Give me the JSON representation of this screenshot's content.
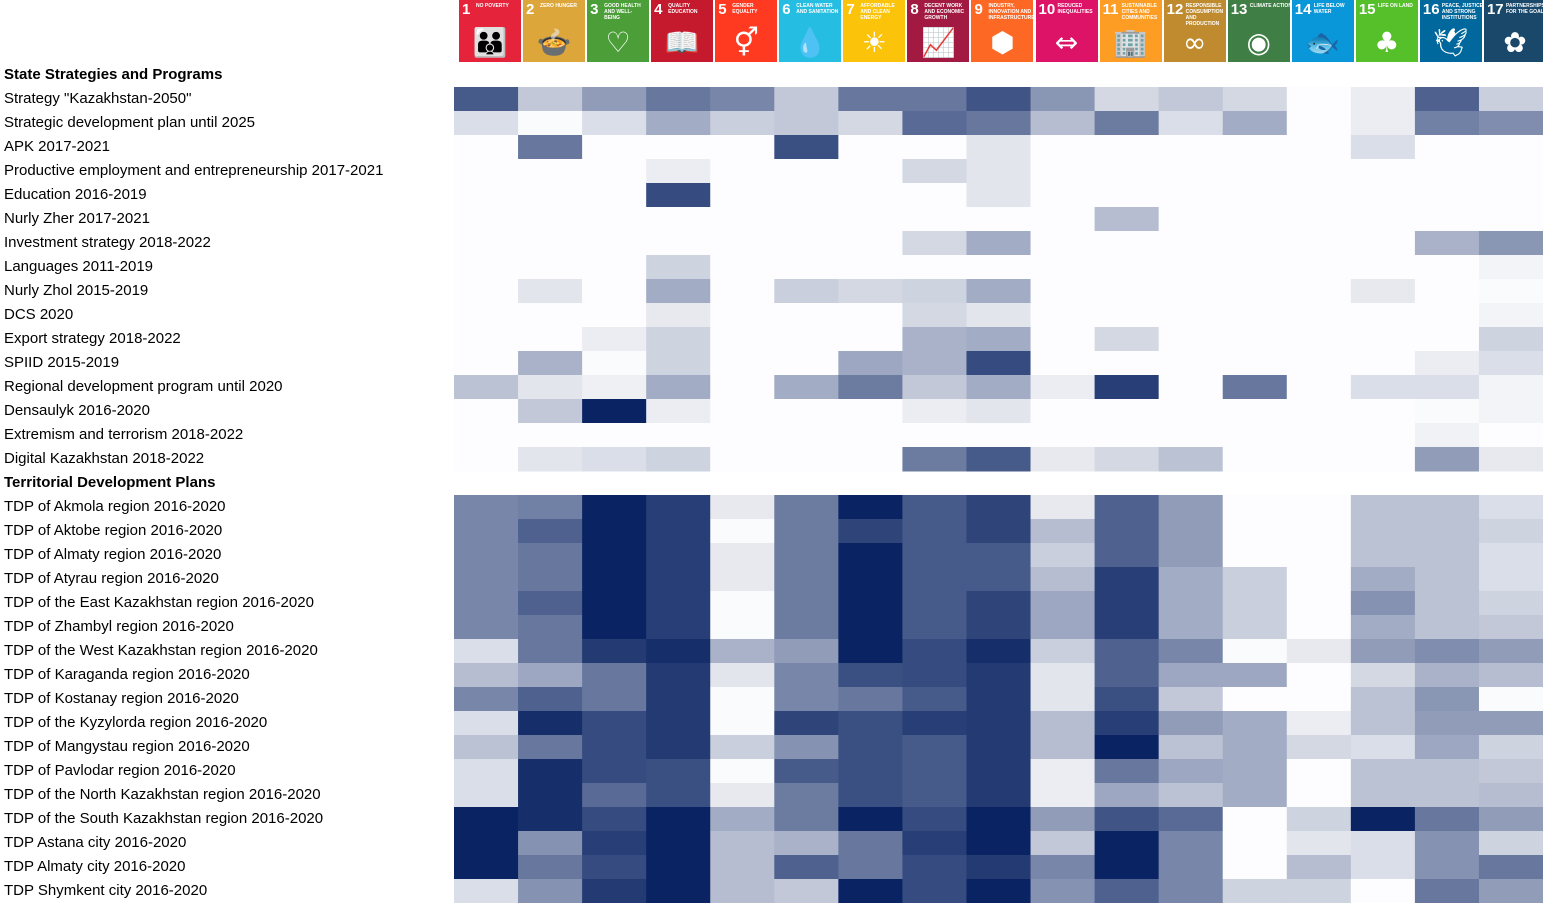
{
  "sdgs": [
    {
      "num": "1",
      "title": "No poverty",
      "color": "#e5243b",
      "icon": "people-family-icon"
    },
    {
      "num": "2",
      "title": "Zero hunger",
      "color": "#dda63a",
      "icon": "food-bowl-icon"
    },
    {
      "num": "3",
      "title": "Good health and well-being",
      "color": "#4c9f38",
      "icon": "heartbeat-icon"
    },
    {
      "num": "4",
      "title": "Quality education",
      "color": "#c5192d",
      "icon": "open-book-icon"
    },
    {
      "num": "5",
      "title": "Gender equality",
      "color": "#ff3a21",
      "icon": "gender-equality-icon"
    },
    {
      "num": "6",
      "title": "Clean water and sanitation",
      "color": "#26bde2",
      "icon": "water-drop-icon"
    },
    {
      "num": "7",
      "title": "Affordable and clean energy",
      "color": "#fcc30b",
      "icon": "sun-icon"
    },
    {
      "num": "8",
      "title": "Decent work and economic growth",
      "color": "#a21942",
      "icon": "growth-chart-icon"
    },
    {
      "num": "9",
      "title": "Industry, innovation and infrastructure",
      "color": "#fd6925",
      "icon": "cubes-icon"
    },
    {
      "num": "10",
      "title": "Reduced inequalities",
      "color": "#dd1367",
      "icon": "equality-arrows-icon"
    },
    {
      "num": "11",
      "title": "Sustainable cities and communities",
      "color": "#fd9d24",
      "icon": "city-buildings-icon"
    },
    {
      "num": "12",
      "title": "Responsible consumption and production",
      "color": "#bf8b2e",
      "icon": "infinity-icon"
    },
    {
      "num": "13",
      "title": "Climate action",
      "color": "#3f7e44",
      "icon": "eye-globe-icon"
    },
    {
      "num": "14",
      "title": "Life below water",
      "color": "#0a97d9",
      "icon": "fish-icon"
    },
    {
      "num": "15",
      "title": "Life on land",
      "color": "#56c02b",
      "icon": "tree-icon"
    },
    {
      "num": "16",
      "title": "Peace, justice and strong institutions",
      "color": "#00689d",
      "icon": "dove-icon"
    },
    {
      "num": "17",
      "title": "Partnerships for the goals",
      "color": "#19486a",
      "icon": "rings-icon"
    }
  ],
  "sections": {
    "state": "State Strategies and Programs",
    "territorial": "Territorial Development Plans"
  },
  "chart_data": {
    "type": "heatmap",
    "columns": [
      "1",
      "2",
      "3",
      "4",
      "5",
      "6",
      "7",
      "8",
      "9",
      "10",
      "11",
      "12",
      "13",
      "14",
      "15",
      "16",
      "17"
    ],
    "value_range": [
      0,
      1
    ],
    "color_low": "#ffffff",
    "color_high": "#0a2463",
    "rows": [
      {
        "label": "Strategy \"Kazakhstan-2050\"",
        "values": [
          0.75,
          0.25,
          0.45,
          0.62,
          0.55,
          0.25,
          0.62,
          0.62,
          0.78,
          0.48,
          0.18,
          0.25,
          0.18,
          0,
          0.08,
          0.72,
          0.22
        ]
      },
      {
        "label": "Strategic development plan until 2025",
        "values": [
          0.15,
          0.02,
          0.15,
          0.38,
          0.22,
          0.25,
          0.18,
          0.68,
          0.62,
          0.3,
          0.6,
          0.15,
          0.38,
          0,
          0.08,
          0.58,
          0.52
        ]
      },
      {
        "label": "APK 2017-2021",
        "values": [
          0,
          0.62,
          0,
          0,
          0,
          0.8,
          0,
          0,
          0.12,
          0,
          0,
          0,
          0,
          0,
          0.15,
          0,
          0
        ]
      },
      {
        "label": "Productive employment and entrepreneurship 2017-2021",
        "values": [
          0,
          0,
          0,
          0.08,
          0,
          0,
          0,
          0.18,
          0.12,
          0,
          0,
          0,
          0,
          0,
          0,
          0,
          0
        ]
      },
      {
        "label": "Education 2016-2019",
        "values": [
          0,
          0,
          0,
          0.82,
          0,
          0,
          0,
          0,
          0.12,
          0,
          0,
          0,
          0,
          0,
          0,
          0,
          0
        ]
      },
      {
        "label": "Nurly Zher 2017-2021",
        "values": [
          0,
          0,
          0,
          0,
          0,
          0,
          0,
          0,
          0,
          0,
          0.3,
          0,
          0,
          0,
          0,
          0,
          0
        ]
      },
      {
        "label": "Investment strategy 2018-2022",
        "values": [
          0,
          0,
          0,
          0,
          0,
          0,
          0,
          0.18,
          0.38,
          0,
          0,
          0,
          0,
          0,
          0,
          0.35,
          0.48
        ]
      },
      {
        "label": "Languages 2011-2019",
        "values": [
          0,
          0,
          0,
          0.2,
          0,
          0,
          0,
          0,
          0,
          0,
          0,
          0,
          0,
          0,
          0,
          0,
          0.05
        ]
      },
      {
        "label": "Nurly Zhol 2015-2019",
        "values": [
          0,
          0.12,
          0,
          0.38,
          0,
          0.22,
          0.18,
          0.2,
          0.38,
          0,
          0,
          0,
          0,
          0,
          0.1,
          0,
          0.02
        ]
      },
      {
        "label": "DCS 2020",
        "values": [
          0,
          0,
          0,
          0.1,
          0,
          0,
          0,
          0.18,
          0.12,
          0,
          0,
          0,
          0,
          0,
          0,
          0,
          0.05
        ]
      },
      {
        "label": "Export strategy 2018-2022",
        "values": [
          0,
          0,
          0.08,
          0.2,
          0,
          0,
          0,
          0.35,
          0.38,
          0,
          0.18,
          0,
          0,
          0,
          0,
          0,
          0.2
        ]
      },
      {
        "label": "SPIID 2015-2019",
        "values": [
          0,
          0.35,
          0.02,
          0.2,
          0,
          0,
          0.4,
          0.35,
          0.82,
          0,
          0,
          0,
          0,
          0,
          0,
          0.08,
          0.15
        ]
      },
      {
        "label": "Regional development program until 2020",
        "values": [
          0.28,
          0.12,
          0.07,
          0.38,
          0,
          0.38,
          0.6,
          0.25,
          0.38,
          0.08,
          0.88,
          0,
          0.62,
          0,
          0.15,
          0.15,
          0.05
        ]
      },
      {
        "label": "Densaulyk 2016-2020",
        "values": [
          0,
          0.25,
          1,
          0.08,
          0,
          0,
          0,
          0.08,
          0.12,
          0,
          0,
          0,
          0,
          0,
          0,
          0.02,
          0.05
        ]
      },
      {
        "label": "Extremism and terrorism 2018-2022",
        "values": [
          0,
          0,
          0,
          0,
          0,
          0,
          0,
          0,
          0,
          0,
          0,
          0,
          0,
          0,
          0,
          0.06,
          0
        ]
      },
      {
        "label": "Digital Kazakhstan 2018-2022",
        "values": [
          0,
          0.12,
          0.15,
          0.2,
          0,
          0,
          0,
          0.6,
          0.75,
          0.1,
          0.18,
          0.28,
          0,
          0,
          0,
          0.45,
          0.1
        ]
      },
      {
        "label": "TDP of Akmola region 2016-2020",
        "values": [
          0.55,
          0.58,
          1,
          0.88,
          0.1,
          0.6,
          1,
          0.75,
          0.85,
          0.1,
          0.72,
          0.45,
          0,
          0,
          0.28,
          0.28,
          0.15
        ]
      },
      {
        "label": "TDP of Aktobe region 2016-2020",
        "values": [
          0.55,
          0.72,
          1,
          0.88,
          0.02,
          0.6,
          0.85,
          0.75,
          0.85,
          0.3,
          0.72,
          0.45,
          0,
          0,
          0.28,
          0.28,
          0.2
        ]
      },
      {
        "label": "TDP of Almaty region 2016-2020",
        "values": [
          0.55,
          0.62,
          1,
          0.88,
          0.1,
          0.6,
          1,
          0.75,
          0.75,
          0.22,
          0.72,
          0.45,
          0,
          0,
          0.28,
          0.28,
          0.15
        ]
      },
      {
        "label": "TDP of Atyrau region 2016-2020",
        "values": [
          0.55,
          0.62,
          1,
          0.88,
          0.1,
          0.6,
          1,
          0.75,
          0.75,
          0.3,
          0.88,
          0.38,
          0.22,
          0,
          0.38,
          0.28,
          0.15
        ]
      },
      {
        "label": "TDP of the East Kazakhstan region 2016-2020",
        "values": [
          0.55,
          0.72,
          1,
          0.88,
          0.02,
          0.6,
          1,
          0.75,
          0.85,
          0.4,
          0.88,
          0.38,
          0.22,
          0,
          0.5,
          0.28,
          0.2
        ]
      },
      {
        "label": "TDP of Zhambyl region 2016-2020",
        "values": [
          0.55,
          0.62,
          1,
          0.88,
          0.02,
          0.6,
          1,
          0.75,
          0.85,
          0.4,
          0.88,
          0.38,
          0.22,
          0,
          0.38,
          0.28,
          0.25
        ]
      },
      {
        "label": "TDP of the West Kazakhstan region 2016-2020",
        "values": [
          0.15,
          0.62,
          0.9,
          0.95,
          0.35,
          0.45,
          1,
          0.82,
          0.95,
          0.22,
          0.72,
          0.55,
          0.02,
          0.1,
          0.45,
          0.52,
          0.45
        ]
      },
      {
        "label": "TDP of Karaganda region 2016-2020",
        "values": [
          0.3,
          0.4,
          0.62,
          0.9,
          0.12,
          0.55,
          0.8,
          0.82,
          0.9,
          0.12,
          0.72,
          0.4,
          0.4,
          0,
          0.18,
          0.35,
          0.3
        ]
      },
      {
        "label": "TDP of Kostanay region 2016-2020",
        "values": [
          0.55,
          0.72,
          0.62,
          0.9,
          0.02,
          0.55,
          0.62,
          0.75,
          0.9,
          0.12,
          0.8,
          0.25,
          0,
          0,
          0.28,
          0.48,
          0.02
        ]
      },
      {
        "label": "TDP of the Kyzylorda region 2016-2020",
        "values": [
          0.15,
          0.95,
          0.82,
          0.9,
          0.02,
          0.85,
          0.8,
          0.88,
          0.9,
          0.3,
          0.88,
          0.45,
          0.38,
          0.08,
          0.28,
          0.45,
          0.45
        ]
      },
      {
        "label": "TDP of Mangystau region 2016-2020",
        "values": [
          0.28,
          0.62,
          0.82,
          0.9,
          0.22,
          0.5,
          0.8,
          0.75,
          0.9,
          0.3,
          1,
          0.28,
          0.38,
          0.18,
          0.15,
          0.4,
          0.2
        ]
      },
      {
        "label": "TDP of Pavlodar region 2016-2020",
        "values": [
          0.15,
          0.95,
          0.82,
          0.8,
          0.02,
          0.75,
          0.8,
          0.75,
          0.9,
          0.08,
          0.62,
          0.4,
          0.38,
          0,
          0.28,
          0.28,
          0.25
        ]
      },
      {
        "label": "TDP of the North Kazakhstan region 2016-2020",
        "values": [
          0.15,
          0.95,
          0.68,
          0.8,
          0.1,
          0.6,
          0.8,
          0.75,
          0.9,
          0.08,
          0.4,
          0.28,
          0.38,
          0,
          0.28,
          0.28,
          0.3
        ]
      },
      {
        "label": "TDP of the South Kazakhstan region 2016-2020",
        "values": [
          1,
          0.95,
          0.82,
          1,
          0.38,
          0.6,
          1,
          0.82,
          1,
          0.45,
          0.78,
          0.68,
          0,
          0.2,
          1,
          0.62,
          0.45
        ]
      },
      {
        "label": "TDP Astana city 2016-2020",
        "values": [
          1,
          0.5,
          0.88,
          1,
          0.3,
          0.35,
          0.62,
          0.88,
          1,
          0.25,
          1,
          0.55,
          0,
          0.12,
          0.15,
          0.5,
          0.2
        ]
      },
      {
        "label": "TDP Almaty city 2016-2020",
        "values": [
          1,
          0.62,
          0.82,
          1,
          0.3,
          0.72,
          0.62,
          0.82,
          0.9,
          0.55,
          1,
          0.55,
          0,
          0.3,
          0.15,
          0.5,
          0.62
        ]
      },
      {
        "label": "TDP Shymkent city 2016-2020",
        "values": [
          0.15,
          0.5,
          0.9,
          1,
          0.3,
          0.25,
          1,
          0.82,
          1,
          0.5,
          0.72,
          0.55,
          0.2,
          0.2,
          0,
          0.62,
          0.45
        ]
      }
    ]
  }
}
